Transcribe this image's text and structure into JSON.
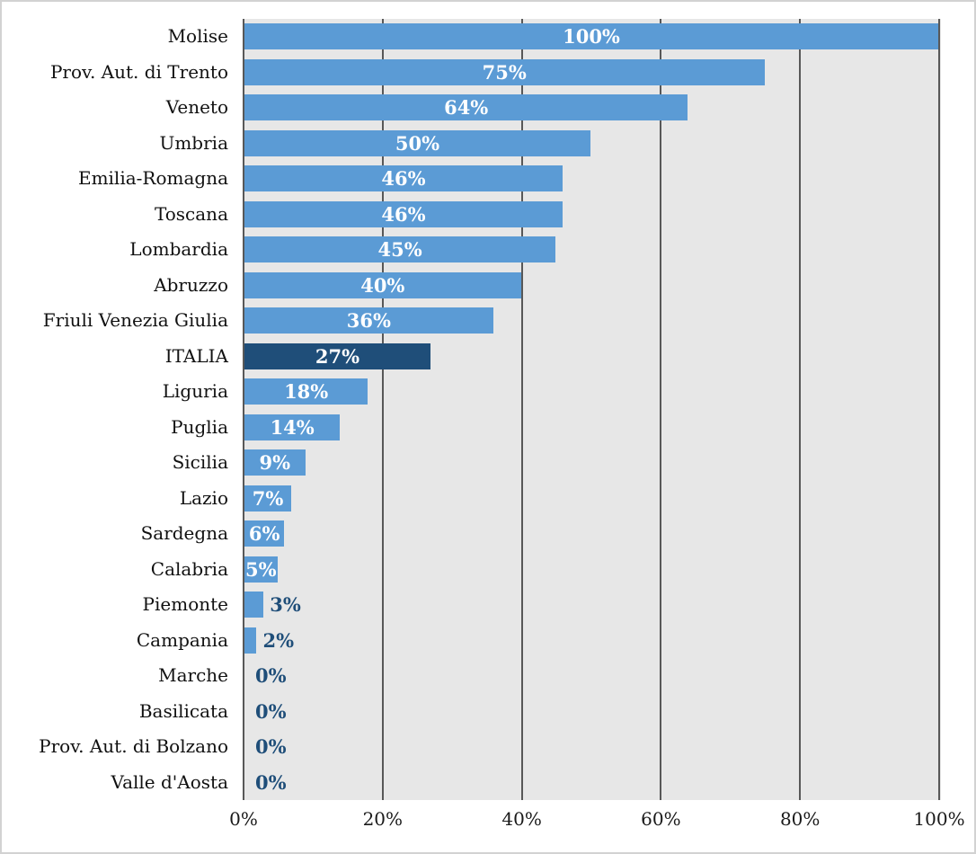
{
  "chart_data": {
    "type": "bar",
    "orientation": "horizontal",
    "title": "",
    "xlabel": "",
    "ylabel": "",
    "categories": [
      "Molise",
      "Prov. Aut. di Trento",
      "Veneto",
      "Umbria",
      "Emilia-Romagna",
      "Toscana",
      "Lombardia",
      "Abruzzo",
      "Friuli Venezia Giulia",
      "ITALIA",
      "Liguria",
      "Puglia",
      "Sicilia",
      "Lazio",
      "Sardegna",
      "Calabria",
      "Piemonte",
      "Campania",
      "Marche",
      "Basilicata",
      "Prov. Aut. di Bolzano",
      "Valle d'Aosta"
    ],
    "values": [
      100,
      75,
      64,
      50,
      46,
      46,
      45,
      40,
      36,
      27,
      18,
      14,
      9,
      7,
      6,
      5,
      3,
      2,
      0,
      0,
      0,
      0
    ],
    "bar_labels": [
      "100%",
      "75%",
      "64%",
      "50%",
      "46%",
      "46%",
      "45%",
      "40%",
      "36%",
      "27%",
      "18%",
      "14%",
      "9%",
      "7%",
      "6%",
      "5%",
      "3%",
      "2%",
      "0%",
      "0%",
      "0%",
      "0%"
    ],
    "highlight_category": "ITALIA",
    "inside_label_min_value": 5,
    "xlim": [
      0,
      100
    ],
    "x_tick_values": [
      0,
      20,
      40,
      60,
      80,
      100
    ],
    "x_tick_labels": [
      "0%",
      "20%",
      "40%",
      "60%",
      "80%",
      "100%"
    ],
    "grid": true,
    "legend": "none"
  },
  "style": {
    "bar_color": "#5B9BD5",
    "highlight_bar_color": "#1F4E79",
    "inside_label_color": "#FFFFFF",
    "outside_label_color": "#1F4E79",
    "plot_background": "#E7E7E7",
    "gridline_color": "#585858",
    "axis_text_color": "#1A1A1A",
    "page_background": "#FFFFFF",
    "page_border_color": "#D2D2D2"
  }
}
